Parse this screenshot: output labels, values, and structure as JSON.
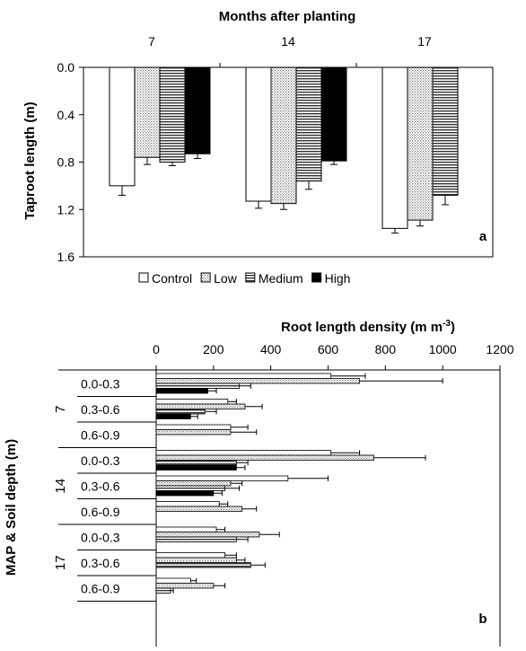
{
  "chart_data": [
    {
      "type": "bar",
      "orientation": "vertical",
      "title": "Months after planting",
      "ylabel": "Taproot length (m)",
      "panel_label": "a",
      "categories": [
        "7",
        "14",
        "17"
      ],
      "ylim": [
        0,
        1.6
      ],
      "y_inverted": true,
      "yticks": [
        "0.0",
        "0.4",
        "0.8",
        "1.2",
        "1.6"
      ],
      "ytick_values": [
        0,
        0.4,
        0.8,
        1.2,
        1.6
      ],
      "legend_position": "bottom",
      "series": [
        {
          "name": "Control",
          "values": [
            1.0,
            1.13,
            1.36
          ],
          "errors": [
            0.08,
            0.06,
            0.04
          ],
          "pattern": "white"
        },
        {
          "name": "Low",
          "values": [
            0.76,
            1.15,
            1.29
          ],
          "errors": [
            0.06,
            0.05,
            0.05
          ],
          "pattern": "dots"
        },
        {
          "name": "Medium",
          "values": [
            0.8,
            0.96,
            1.08
          ],
          "errors": [
            0.03,
            0.07,
            0.08
          ],
          "pattern": "hlines"
        },
        {
          "name": "High",
          "values": [
            0.73,
            0.79,
            null
          ],
          "errors": [
            0.04,
            0.03,
            null
          ],
          "pattern": "black"
        }
      ]
    },
    {
      "type": "bar",
      "orientation": "horizontal",
      "title_main": "Root length density (m m",
      "title_sup": "-3",
      "title_end": ")",
      "ylabel": "MAP & Soil depth (m)",
      "panel_label": "b",
      "xlim": [
        0,
        1200
      ],
      "xticks": [
        "0",
        "200",
        "400",
        "600",
        "800",
        "1000",
        "1200"
      ],
      "xtick_values": [
        0,
        200,
        400,
        600,
        800,
        1000,
        1200
      ],
      "groups": [
        "7",
        "14",
        "17"
      ],
      "depths": [
        "0.0-0.3",
        "0.3-0.6",
        "0.6-0.9"
      ],
      "series_order": [
        "Control",
        "Low",
        "Medium",
        "High"
      ],
      "rows": [
        {
          "group": "7",
          "depth": "0.0-0.3",
          "values": [
            610,
            710,
            290,
            180
          ],
          "errors": [
            120,
            290,
            40,
            30
          ]
        },
        {
          "group": "7",
          "depth": "0.3-0.6",
          "values": [
            250,
            310,
            170,
            120
          ],
          "errors": [
            30,
            60,
            40,
            25
          ]
        },
        {
          "group": "7",
          "depth": "0.6-0.9",
          "values": [
            260,
            260,
            null,
            null
          ],
          "errors": [
            60,
            90,
            null,
            null
          ]
        },
        {
          "group": "14",
          "depth": "0.0-0.3",
          "values": [
            610,
            760,
            280,
            280
          ],
          "errors": [
            100,
            180,
            40,
            30
          ]
        },
        {
          "group": "14",
          "depth": "0.3-0.6",
          "values": [
            460,
            260,
            240,
            200
          ],
          "errors": [
            140,
            40,
            50,
            30
          ]
        },
        {
          "group": "14",
          "depth": "0.6-0.9",
          "values": [
            220,
            300,
            null,
            null
          ],
          "errors": [
            30,
            50,
            null,
            null
          ]
        },
        {
          "group": "17",
          "depth": "0.0-0.3",
          "values": [
            210,
            360,
            280,
            null
          ],
          "errors": [
            30,
            70,
            40,
            null
          ]
        },
        {
          "group": "17",
          "depth": "0.3-0.6",
          "values": [
            240,
            280,
            330,
            null
          ],
          "errors": [
            40,
            30,
            50,
            null
          ]
        },
        {
          "group": "17",
          "depth": "0.6-0.9",
          "values": [
            120,
            200,
            50,
            null
          ],
          "errors": [
            20,
            40,
            10,
            null
          ]
        }
      ]
    }
  ]
}
